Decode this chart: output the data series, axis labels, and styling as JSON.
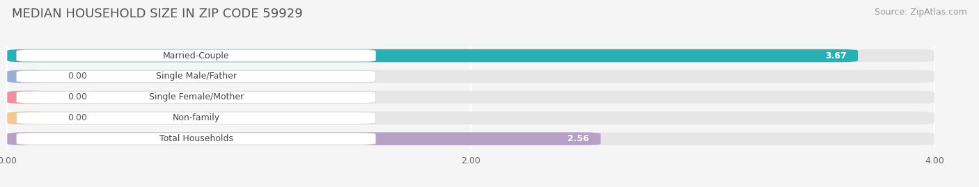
{
  "title": "MEDIAN HOUSEHOLD SIZE IN ZIP CODE 59929",
  "source": "Source: ZipAtlas.com",
  "categories": [
    "Married-Couple",
    "Single Male/Father",
    "Single Female/Mother",
    "Non-family",
    "Total Households"
  ],
  "values": [
    3.67,
    0.0,
    0.0,
    0.0,
    2.56
  ],
  "bar_colors": [
    "#29b0b6",
    "#9baed4",
    "#f08fa0",
    "#f5c892",
    "#b89fc8"
  ],
  "xlim": [
    0,
    4.0
  ],
  "xticks": [
    0.0,
    2.0,
    4.0
  ],
  "xtick_labels": [
    "0.00",
    "2.00",
    "4.00"
  ],
  "background_color": "#f5f5f5",
  "bar_bg_color": "#e6e6e6",
  "title_fontsize": 13,
  "source_fontsize": 9,
  "label_fontsize": 9,
  "value_fontsize": 9,
  "bar_height": 0.62,
  "n_bars": 5
}
